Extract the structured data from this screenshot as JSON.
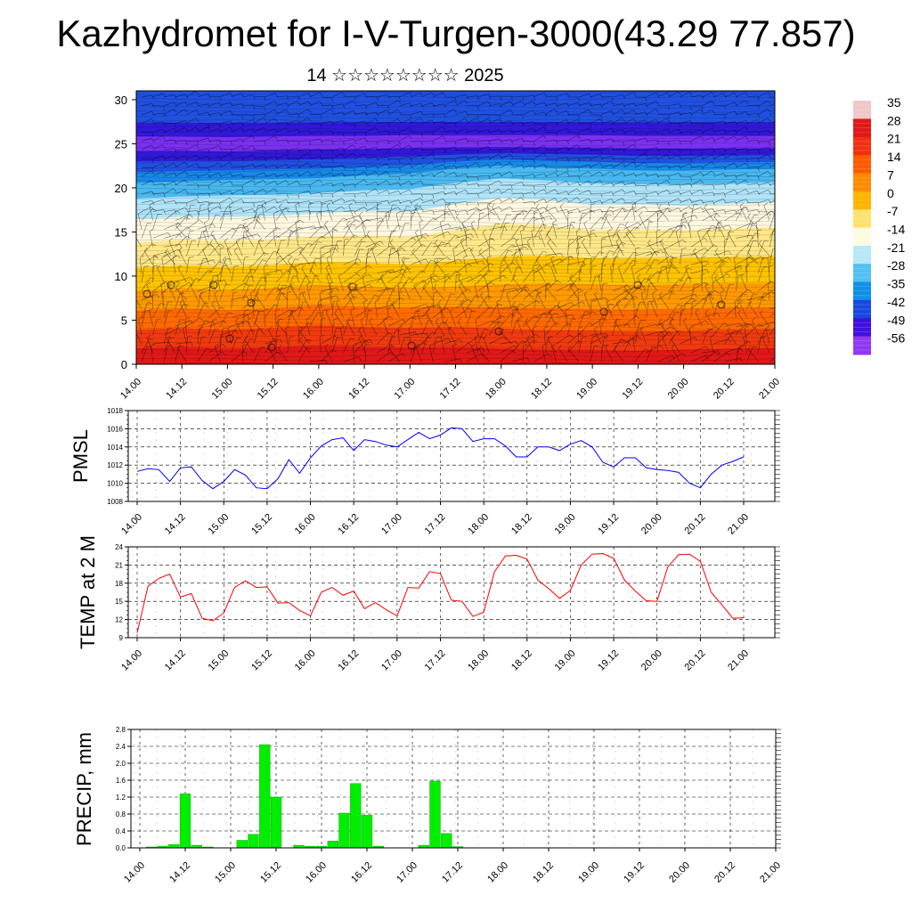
{
  "title": "Kazhydromet for I-V-Turgen-3000(43.29 77.857)",
  "subtitle": "14 ☆☆☆☆☆☆☆☆ 2025",
  "chart_data": [
    {
      "type": "heatmap",
      "name": "upper-air cross-section with wind barbs",
      "y_ticks": [
        0,
        5,
        10,
        15,
        20,
        25,
        30
      ],
      "ylim": [
        0,
        31
      ],
      "x_ticks": [
        "14.00",
        "14.12",
        "15.00",
        "15.12",
        "16.00",
        "16.12",
        "17.00",
        "17.12",
        "18.00",
        "18.12",
        "19.00",
        "19.12",
        "20.00",
        "20.12",
        "21.00"
      ],
      "colorbar": {
        "labels": [
          "35",
          "28",
          "21",
          "14",
          "7",
          "0",
          "-7",
          "-14",
          "-21",
          "-28",
          "-35",
          "-42",
          "-49",
          "-56"
        ],
        "colors": [
          "#f0c8c8",
          "#e01818",
          "#f03010",
          "#ff5a00",
          "#ff8a00",
          "#ffb400",
          "#ffe070",
          "#fffbe0",
          "#b8e8f8",
          "#50c0f0",
          "#1090e8",
          "#1848e0",
          "#4010e0",
          "#9038f0"
        ]
      },
      "isotherm_levels": [
        {
          "temp": 28,
          "heights": [
            0.8,
            0.9,
            0.7,
            0.8,
            1.0,
            0.9,
            0.8,
            0.9,
            0.7,
            0.6,
            0.6,
            0.5,
            0.6,
            0.7,
            0.8
          ]
        },
        {
          "temp": 14,
          "heights": [
            5.0,
            5.2,
            5.0,
            5.3,
            5.6,
            5.4,
            5.3,
            5.4,
            5.2,
            5.0,
            4.9,
            4.8,
            4.9,
            5.0,
            5.1
          ]
        },
        {
          "temp": 0,
          "heights": [
            9.5,
            9.8,
            9.6,
            9.8,
            10.2,
            10.0,
            9.8,
            10.0,
            10.4,
            10.6,
            10.5,
            10.4,
            10.5,
            10.6,
            10.6
          ]
        },
        {
          "temp": -14,
          "heights": [
            15.3,
            15.6,
            15.5,
            15.6,
            16.0,
            16.2,
            16.0,
            17.0,
            17.8,
            17.5,
            16.8,
            17.0,
            16.8,
            17.0,
            17.2
          ]
        },
        {
          "temp": -28,
          "heights": [
            20.0,
            20.2,
            20.4,
            20.5,
            20.6,
            21.0,
            21.2,
            21.8,
            22.2,
            22.0,
            21.8,
            21.6,
            21.6,
            21.7,
            21.8
          ]
        },
        {
          "temp": -56,
          "heights": [
            24.8,
            24.8,
            24.7,
            24.8,
            24.9,
            24.9,
            25.0,
            25.0,
            25.0,
            25.0,
            25.0,
            24.9,
            24.9,
            24.9,
            24.9
          ]
        },
        {
          "temp": -42,
          "heights": [
            29.0,
            29.0,
            29.0,
            29.0,
            29.0,
            29.0,
            29.0,
            29.0,
            29.0,
            29.0,
            29.0,
            29.0,
            29.0,
            29.0,
            29.0
          ]
        }
      ]
    },
    {
      "type": "line",
      "ylabel": "PMSL",
      "ylim": [
        1008,
        1018
      ],
      "y_ticks": [
        1008,
        1010,
        1012,
        1014,
        1016,
        1018
      ],
      "x_ticks": [
        "14.00",
        "14.12",
        "15.00",
        "15.12",
        "16.00",
        "16.12",
        "17.00",
        "17.12",
        "18.00",
        "18.12",
        "19.00",
        "19.12",
        "20.00",
        "20.12",
        "21.00"
      ],
      "series": [
        {
          "color": "#0000ff",
          "values": [
            1011.3,
            1011.6,
            1011.5,
            1010.2,
            1011.7,
            1011.8,
            1010.3,
            1009.4,
            1010.2,
            1011.5,
            1010.9,
            1009.5,
            1009.4,
            1010.5,
            1012.6,
            1011.1,
            1012.8,
            1014.1,
            1014.8,
            1015.0,
            1013.6,
            1014.8,
            1014.6,
            1014.2,
            1014.0,
            1014.8,
            1015.6,
            1014.9,
            1015.3,
            1016.1,
            1016.0,
            1014.6,
            1014.9,
            1014.9,
            1014.1,
            1012.9,
            1012.9,
            1014.0,
            1014.0,
            1013.6,
            1014.3,
            1014.7,
            1014.0,
            1012.3,
            1011.8,
            1012.8,
            1012.8,
            1011.7,
            1011.5,
            1011.4,
            1011.2,
            1010.0,
            1009.5,
            1011.0,
            1012.0,
            1012.4,
            1012.9
          ]
        }
      ]
    },
    {
      "type": "line",
      "ylabel": "TEMP at 2 M",
      "ylim": [
        9,
        24
      ],
      "y_ticks": [
        9,
        12,
        15,
        18,
        21,
        24
      ],
      "x_ticks": [
        "14.00",
        "14.12",
        "15.00",
        "15.12",
        "16.00",
        "16.12",
        "17.00",
        "17.12",
        "18.00",
        "18.12",
        "19.00",
        "19.12",
        "20.00",
        "20.12",
        "21.00"
      ],
      "series": [
        {
          "color": "#ff0000",
          "values": [
            9.8,
            17.5,
            18.8,
            19.5,
            15.7,
            16.3,
            12.2,
            11.8,
            13.1,
            17.3,
            18.4,
            17.3,
            17.4,
            14.7,
            14.8,
            13.5,
            12.6,
            16.5,
            17.3,
            16.0,
            16.7,
            13.8,
            14.8,
            13.6,
            12.6,
            17.3,
            17.2,
            19.9,
            19.6,
            15.2,
            15.0,
            12.5,
            13.2,
            19.9,
            22.5,
            22.6,
            22.0,
            18.5,
            17.1,
            15.5,
            16.8,
            21.0,
            22.8,
            22.9,
            22.1,
            18.5,
            16.7,
            15.1,
            15.0,
            20.7,
            22.7,
            22.8,
            21.6,
            16.5,
            14.4,
            12.2,
            12.3
          ]
        }
      ]
    },
    {
      "type": "bar",
      "ylabel": "PRECIP, mm",
      "ylim": [
        0,
        2.8
      ],
      "y_ticks": [
        "0.0",
        "0.4",
        "0.8",
        "1.2",
        "1.6",
        "2.0",
        "2.4",
        "2.8"
      ],
      "x_ticks": [
        "14.00",
        "14.12",
        "15.00",
        "15.12",
        "16.00",
        "16.12",
        "17.00",
        "17.12",
        "18.00",
        "18.12",
        "19.00",
        "19.12",
        "20.00",
        "20.12",
        "21.00"
      ],
      "bar_color": "#00ee00",
      "values": [
        0,
        0.02,
        0.04,
        0.08,
        1.28,
        0.06,
        0.02,
        0,
        0,
        0.18,
        0.32,
        2.44,
        1.2,
        0,
        0.06,
        0.04,
        0.04,
        0.16,
        0.82,
        1.52,
        0.77,
        0.04,
        0,
        0,
        0,
        0.06,
        1.58,
        0.34,
        0.03,
        0,
        0,
        0,
        0,
        0,
        0,
        0,
        0,
        0,
        0,
        0,
        0,
        0,
        0,
        0,
        0,
        0,
        0,
        0,
        0,
        0,
        0,
        0,
        0,
        0,
        0,
        0,
        0
      ]
    }
  ]
}
